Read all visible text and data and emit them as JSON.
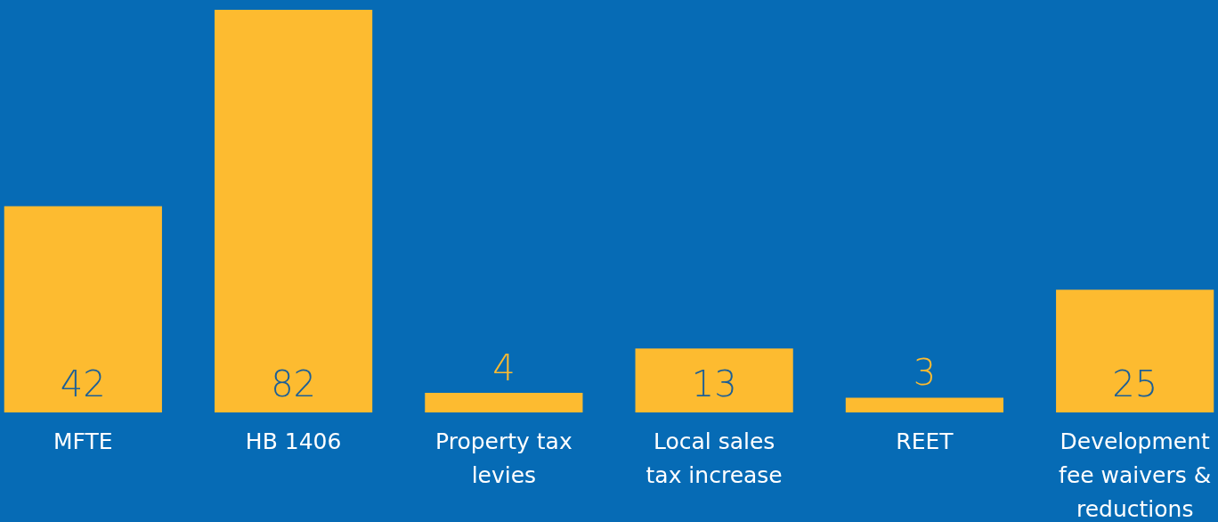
{
  "chart_data": {
    "type": "bar",
    "categories": [
      "MFTE",
      "HB 1406",
      "Property tax levies",
      "Local sales tax increase",
      "REET",
      "Development fee waivers & reductions"
    ],
    "values": [
      42,
      82,
      4,
      13,
      3,
      25
    ],
    "color": "#fdbb30",
    "data_labels": true
  }
}
